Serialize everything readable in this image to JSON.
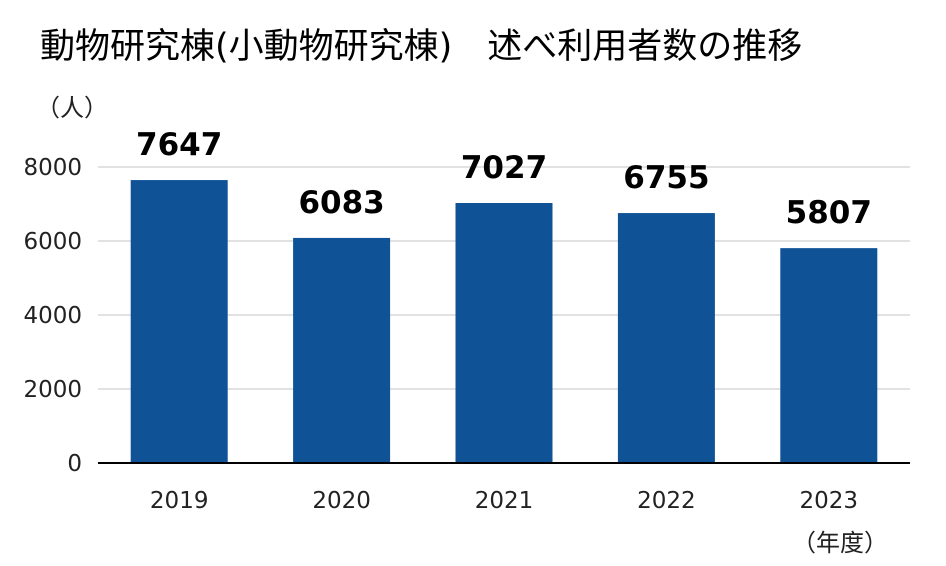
{
  "chart_data": {
    "type": "bar",
    "title": "動物研究棟(小動物研究棟)　述べ利用者数の推移",
    "categories": [
      "2019",
      "2020",
      "2021",
      "2022",
      "2023"
    ],
    "values": [
      7647,
      6083,
      7027,
      6755,
      5807
    ],
    "data_labels": [
      "7647",
      "6083",
      "7027",
      "6755",
      "5807"
    ],
    "y_ticks": [
      0,
      2000,
      4000,
      6000,
      8000
    ],
    "ylim": [
      0,
      8000
    ],
    "ylabel": "（人）",
    "xlabel": "（年度）",
    "grid": true,
    "legend": "none",
    "bar_color": "#0f5396",
    "grid_color": "#d9d9d9",
    "axis_color": "#000000"
  }
}
